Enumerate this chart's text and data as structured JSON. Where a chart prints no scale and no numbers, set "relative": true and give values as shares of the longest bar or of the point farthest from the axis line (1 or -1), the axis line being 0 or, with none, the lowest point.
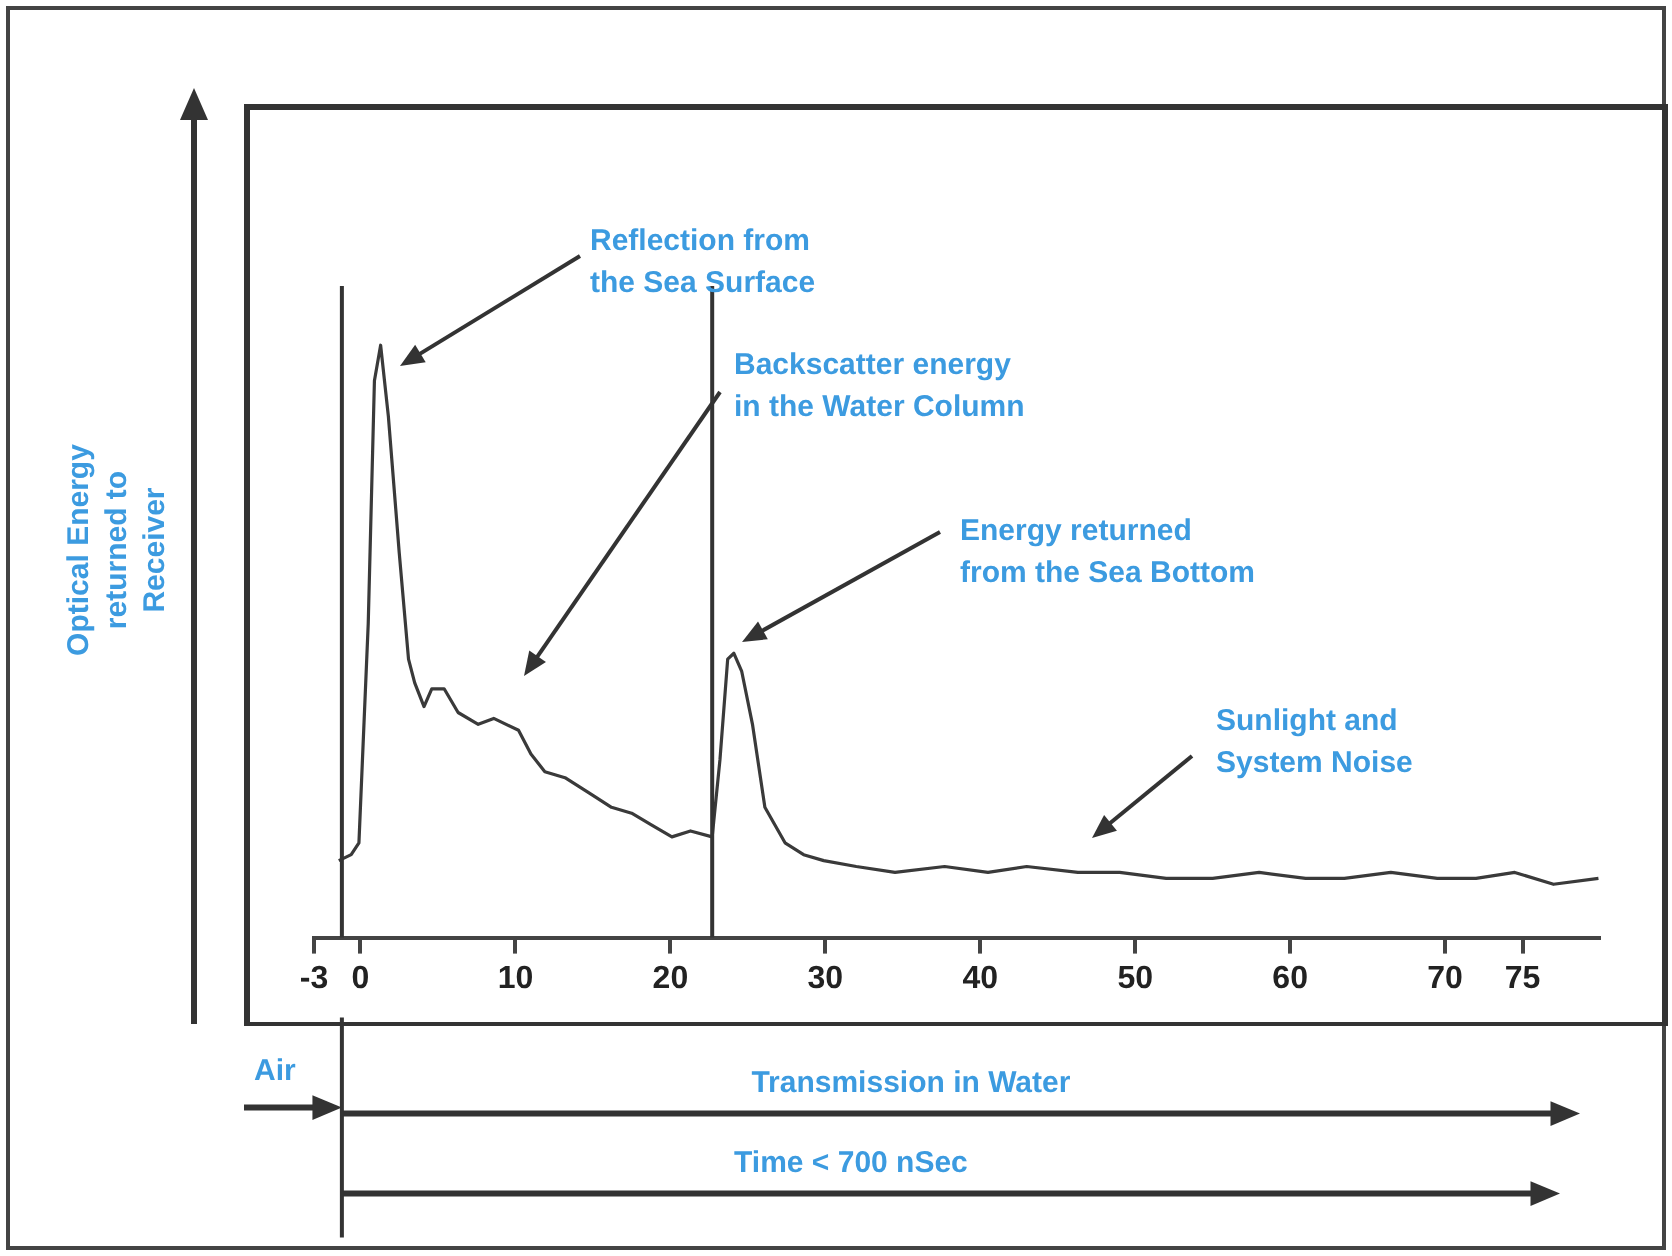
{
  "chart_data": {
    "type": "line",
    "relative": true,
    "ylabel": "Optical Energy returned to Receiver",
    "xlim": [
      -3,
      80
    ],
    "xticks": [
      -3,
      0,
      10,
      20,
      30,
      40,
      50,
      60,
      70,
      75
    ],
    "series": [
      {
        "color": "#3a3a3a",
        "x": [
          -1.4,
          -0.6,
          -0.1,
          0.5,
          0.9,
          1.3,
          1.8,
          2.5,
          3.1,
          3.5,
          4.1,
          4.6,
          5.4,
          6.3,
          7.6,
          8.6,
          10.2,
          11.0,
          11.9,
          13.2,
          15.0,
          16.2,
          17.5,
          18.8,
          20.1,
          21.3,
          22.7,
          23.2,
          23.7,
          24.1,
          24.6,
          25.3,
          26.1,
          27.4,
          28.6,
          29.9,
          32.0,
          34.5,
          37.7,
          40.5,
          43.0,
          46.3,
          49.0,
          52.0,
          55.0,
          58.0,
          61.0,
          63.5,
          66.5,
          69.5,
          72.0,
          74.5,
          77.0,
          79.9
        ],
        "values": [
          0.13,
          0.14,
          0.16,
          0.53,
          0.94,
          1.0,
          0.88,
          0.65,
          0.47,
          0.43,
          0.39,
          0.42,
          0.42,
          0.38,
          0.36,
          0.37,
          0.35,
          0.31,
          0.28,
          0.27,
          0.24,
          0.22,
          0.21,
          0.19,
          0.17,
          0.18,
          0.17,
          0.3,
          0.47,
          0.48,
          0.45,
          0.36,
          0.22,
          0.16,
          0.14,
          0.13,
          0.12,
          0.11,
          0.12,
          0.11,
          0.12,
          0.11,
          0.11,
          0.1,
          0.1,
          0.11,
          0.1,
          0.1,
          0.11,
          0.1,
          0.1,
          0.11,
          0.09,
          0.1
        ]
      }
    ],
    "ref_lines": [
      {
        "axis": "x",
        "value": -1.2
      },
      {
        "axis": "x",
        "value": 22.7
      }
    ],
    "annotations": [
      "Reflection from the Sea Surface",
      "Backscatter energy in the Water Column",
      "Energy returned from the Sea Bottom",
      "Sunlight and System Noise",
      "Air",
      "Transmission in Water",
      "Time < 700 nSec"
    ]
  }
}
